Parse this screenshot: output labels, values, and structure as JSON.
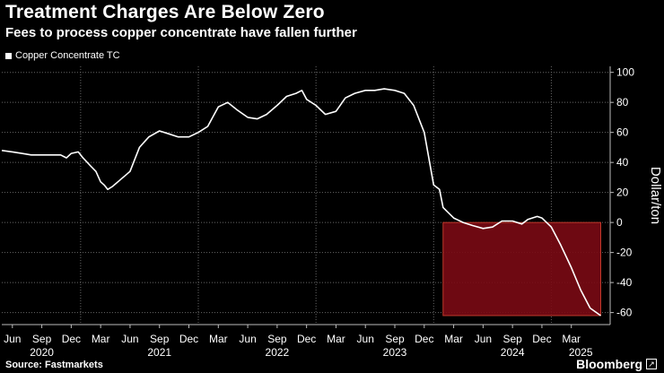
{
  "header": {
    "title": "Treatment Charges Are Below Zero",
    "subtitle": "Fees to process copper concentrate have fallen further"
  },
  "legend": {
    "label": "Copper Concentrate TC",
    "color": "#ffffff"
  },
  "footer": {
    "source": "Source: Fastmarkets",
    "brand": "Bloomberg"
  },
  "colors": {
    "line": "#ffffff",
    "highlight": "#7a0a14",
    "highlight_border": "#c0392b",
    "grid": "#666666"
  },
  "chart_data": {
    "type": "line",
    "title": "Treatment Charges Are Below Zero",
    "ylabel": "Dollar/ton",
    "xlabel": "",
    "ylim": [
      -68,
      104
    ],
    "xlim": [
      2020.33,
      2025.5
    ],
    "y_ticks": [
      100,
      80,
      60,
      40,
      20,
      0,
      -20,
      -40,
      -60
    ],
    "y_tick_labels": [
      "100",
      "80",
      "60",
      "40",
      "20",
      "0",
      "-20",
      "-40",
      "-60"
    ],
    "month_ticks": [
      {
        "x": 2020.42,
        "label": "Jun"
      },
      {
        "x": 2020.67,
        "label": "Sep"
      },
      {
        "x": 2020.92,
        "label": "Dec"
      },
      {
        "x": 2021.17,
        "label": "Mar"
      },
      {
        "x": 2021.42,
        "label": "Jun"
      },
      {
        "x": 2021.67,
        "label": "Sep"
      },
      {
        "x": 2021.92,
        "label": "Dec"
      },
      {
        "x": 2022.17,
        "label": "Mar"
      },
      {
        "x": 2022.42,
        "label": "Jun"
      },
      {
        "x": 2022.67,
        "label": "Sep"
      },
      {
        "x": 2022.92,
        "label": "Dec"
      },
      {
        "x": 2023.17,
        "label": "Mar"
      },
      {
        "x": 2023.42,
        "label": "Jun"
      },
      {
        "x": 2023.67,
        "label": "Sep"
      },
      {
        "x": 2023.92,
        "label": "Dec"
      },
      {
        "x": 2024.17,
        "label": "Mar"
      },
      {
        "x": 2024.42,
        "label": "Jun"
      },
      {
        "x": 2024.67,
        "label": "Sep"
      },
      {
        "x": 2024.92,
        "label": "Dec"
      },
      {
        "x": 2025.17,
        "label": "Mar"
      }
    ],
    "year_labels": [
      {
        "x": 2020.67,
        "label": "2020"
      },
      {
        "x": 2021.67,
        "label": "2021"
      },
      {
        "x": 2022.67,
        "label": "2022"
      },
      {
        "x": 2023.67,
        "label": "2023"
      },
      {
        "x": 2024.67,
        "label": "2024"
      },
      {
        "x": 2025.25,
        "label": "2025"
      }
    ],
    "highlight": {
      "x_start": 2024.08,
      "x_end": 2025.42,
      "y_start": -62,
      "y_end": 0
    },
    "series": [
      {
        "name": "Copper Concentrate TC",
        "points": [
          [
            2020.33,
            48
          ],
          [
            2020.42,
            47
          ],
          [
            2020.5,
            46
          ],
          [
            2020.58,
            45
          ],
          [
            2020.67,
            45
          ],
          [
            2020.75,
            45
          ],
          [
            2020.83,
            45
          ],
          [
            2020.88,
            43
          ],
          [
            2020.92,
            46
          ],
          [
            2020.98,
            47
          ],
          [
            2021.02,
            43
          ],
          [
            2021.08,
            38
          ],
          [
            2021.13,
            34
          ],
          [
            2021.17,
            27
          ],
          [
            2021.2,
            25
          ],
          [
            2021.23,
            22
          ],
          [
            2021.27,
            24
          ],
          [
            2021.33,
            28
          ],
          [
            2021.42,
            34
          ],
          [
            2021.5,
            50
          ],
          [
            2021.58,
            57
          ],
          [
            2021.67,
            61
          ],
          [
            2021.75,
            59
          ],
          [
            2021.83,
            57
          ],
          [
            2021.92,
            57
          ],
          [
            2022.0,
            60
          ],
          [
            2022.08,
            64
          ],
          [
            2022.17,
            77
          ],
          [
            2022.25,
            80
          ],
          [
            2022.33,
            75
          ],
          [
            2022.42,
            70
          ],
          [
            2022.5,
            69
          ],
          [
            2022.58,
            72
          ],
          [
            2022.67,
            78
          ],
          [
            2022.75,
            84
          ],
          [
            2022.83,
            86
          ],
          [
            2022.88,
            88
          ],
          [
            2022.92,
            82
          ],
          [
            2023.0,
            78
          ],
          [
            2023.08,
            72
          ],
          [
            2023.17,
            74
          ],
          [
            2023.25,
            83
          ],
          [
            2023.33,
            86
          ],
          [
            2023.42,
            88
          ],
          [
            2023.5,
            88
          ],
          [
            2023.58,
            89
          ],
          [
            2023.67,
            88
          ],
          [
            2023.75,
            86
          ],
          [
            2023.83,
            78
          ],
          [
            2023.92,
            60
          ],
          [
            2024.0,
            25
          ],
          [
            2024.05,
            22
          ],
          [
            2024.08,
            10
          ],
          [
            2024.17,
            3
          ],
          [
            2024.25,
            0
          ],
          [
            2024.33,
            -2
          ],
          [
            2024.42,
            -4
          ],
          [
            2024.5,
            -3
          ],
          [
            2024.58,
            1
          ],
          [
            2024.67,
            1
          ],
          [
            2024.75,
            -1
          ],
          [
            2024.8,
            2
          ],
          [
            2024.88,
            4
          ],
          [
            2024.92,
            3
          ],
          [
            2025.0,
            -3
          ],
          [
            2025.08,
            -15
          ],
          [
            2025.17,
            -30
          ],
          [
            2025.25,
            -45
          ],
          [
            2025.33,
            -57
          ],
          [
            2025.42,
            -62
          ]
        ]
      }
    ]
  }
}
